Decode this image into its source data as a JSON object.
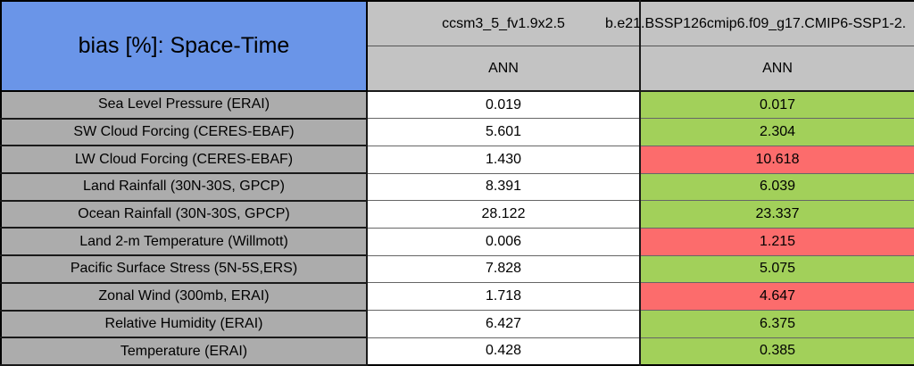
{
  "colors": {
    "title_bg": "#6A95E8",
    "header_bg": "#C3C3C3",
    "label_bg": "#ACACAC",
    "value_bg": "#FFFFFF",
    "better_bg": "#A2D05A",
    "worse_bg": "#FC6C6C"
  },
  "table": {
    "title": "bias [%]: Space-Time",
    "col_headers": [
      {
        "model": "ccsm3_5_fv1.9x2.5",
        "season": "ANN"
      },
      {
        "model": "b.e21.BSSP126cmip6.f09_g17.CMIP6-SSP1-2.",
        "season": "ANN"
      }
    ],
    "rows": [
      {
        "label": "Sea Level Pressure (ERAI)",
        "values": [
          {
            "text": "0.019",
            "status": "plain"
          },
          {
            "text": "0.017",
            "status": "better"
          }
        ]
      },
      {
        "label": "SW Cloud Forcing (CERES-EBAF)",
        "values": [
          {
            "text": "5.601",
            "status": "plain"
          },
          {
            "text": "2.304",
            "status": "better"
          }
        ]
      },
      {
        "label": "LW Cloud Forcing (CERES-EBAF)",
        "values": [
          {
            "text": "1.430",
            "status": "plain"
          },
          {
            "text": "10.618",
            "status": "worse"
          }
        ]
      },
      {
        "label": "Land Rainfall (30N-30S, GPCP)",
        "values": [
          {
            "text": "8.391",
            "status": "plain"
          },
          {
            "text": "6.039",
            "status": "better"
          }
        ]
      },
      {
        "label": "Ocean Rainfall (30N-30S, GPCP)",
        "values": [
          {
            "text": "28.122",
            "status": "plain"
          },
          {
            "text": "23.337",
            "status": "better"
          }
        ]
      },
      {
        "label": "Land 2-m Temperature (Willmott)",
        "values": [
          {
            "text": "0.006",
            "status": "plain"
          },
          {
            "text": "1.215",
            "status": "worse"
          }
        ]
      },
      {
        "label": "Pacific Surface Stress (5N-5S,ERS)",
        "values": [
          {
            "text": "7.828",
            "status": "plain"
          },
          {
            "text": "5.075",
            "status": "better"
          }
        ]
      },
      {
        "label": "Zonal Wind (300mb, ERAI)",
        "values": [
          {
            "text": "1.718",
            "status": "plain"
          },
          {
            "text": "4.647",
            "status": "worse"
          }
        ]
      },
      {
        "label": "Relative Humidity (ERAI)",
        "values": [
          {
            "text": "6.427",
            "status": "plain"
          },
          {
            "text": "6.375",
            "status": "better"
          }
        ]
      },
      {
        "label": "Temperature (ERAI)",
        "values": [
          {
            "text": "0.428",
            "status": "plain"
          },
          {
            "text": "0.385",
            "status": "better"
          }
        ]
      }
    ]
  },
  "chart_data": {
    "type": "table",
    "title": "bias [%]: Space-Time",
    "columns": [
      "ccsm3_5_fv1.9x2.5 (ANN)",
      "b.e21.BSSP126cmip6.f09_g17.CMIP6-SSP1-2. (ANN)"
    ],
    "row_labels": [
      "Sea Level Pressure (ERAI)",
      "SW Cloud Forcing (CERES-EBAF)",
      "LW Cloud Forcing (CERES-EBAF)",
      "Land Rainfall (30N-30S, GPCP)",
      "Ocean Rainfall (30N-30S, GPCP)",
      "Land 2-m Temperature (Willmott)",
      "Pacific Surface Stress (5N-5S,ERS)",
      "Zonal Wind (300mb, ERAI)",
      "Relative Humidity (ERAI)",
      "Temperature (ERAI)"
    ],
    "series": [
      {
        "name": "ccsm3_5_fv1.9x2.5",
        "values": [
          0.019,
          5.601,
          1.43,
          8.391,
          28.122,
          0.006,
          7.828,
          1.718,
          6.427,
          0.428
        ]
      },
      {
        "name": "b.e21.BSSP126cmip6.f09_g17.CMIP6-SSP1-2.",
        "values": [
          0.017,
          2.304,
          10.618,
          6.039,
          23.337,
          1.215,
          5.075,
          4.647,
          6.375,
          0.385
        ]
      }
    ],
    "cell_highlight": {
      "legend": "green = improved vs first model, red = degraded",
      "second_column_status": [
        "better",
        "better",
        "worse",
        "better",
        "better",
        "worse",
        "better",
        "worse",
        "better",
        "better"
      ]
    }
  }
}
